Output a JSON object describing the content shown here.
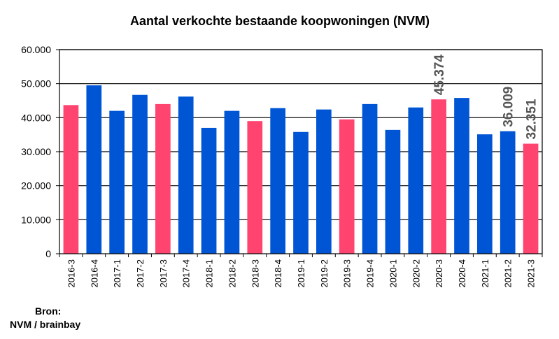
{
  "chart_data": {
    "type": "bar",
    "title": "Aantal verkochte bestaande koopwoningen (NVM)",
    "categories": [
      "2016-3",
      "2016-4",
      "2017-1",
      "2017-2",
      "2017-3",
      "2017-4",
      "2018-1",
      "2018-2",
      "2018-3",
      "2018-4",
      "2019-1",
      "2019-2",
      "2019-3",
      "2019-4",
      "2020-1",
      "2020-2",
      "2020-3",
      "2020-4",
      "2021-1",
      "2021-2",
      "2021-3"
    ],
    "values": [
      43700,
      49500,
      42000,
      46700,
      44000,
      46200,
      37000,
      42000,
      39000,
      42800,
      35800,
      42400,
      39500,
      44000,
      36400,
      43000,
      45374,
      45800,
      35100,
      36009,
      32351
    ],
    "bar_colors": [
      "#ff4470",
      "#0055d4",
      "#0055d4",
      "#0055d4",
      "#ff4470",
      "#0055d4",
      "#0055d4",
      "#0055d4",
      "#ff4470",
      "#0055d4",
      "#0055d4",
      "#0055d4",
      "#ff4470",
      "#0055d4",
      "#0055d4",
      "#0055d4",
      "#ff4470",
      "#0055d4",
      "#0055d4",
      "#0055d4",
      "#ff4470"
    ],
    "ylim": [
      0,
      60000
    ],
    "yticks": [
      0,
      10000,
      20000,
      30000,
      40000,
      50000,
      60000
    ],
    "ytick_labels": [
      "0",
      "10.000",
      "20.000",
      "30.000",
      "40.000",
      "50.000",
      "60.000"
    ],
    "grid": true,
    "data_labels": [
      {
        "category": "2020-3",
        "text": "45.374"
      },
      {
        "category": "2021-2",
        "text": "36.009"
      },
      {
        "category": "2021-3",
        "text": "32.351"
      }
    ],
    "xlabel": "",
    "ylabel": ""
  },
  "source": {
    "line1": "Bron:",
    "line2": "NVM / brainbay"
  }
}
